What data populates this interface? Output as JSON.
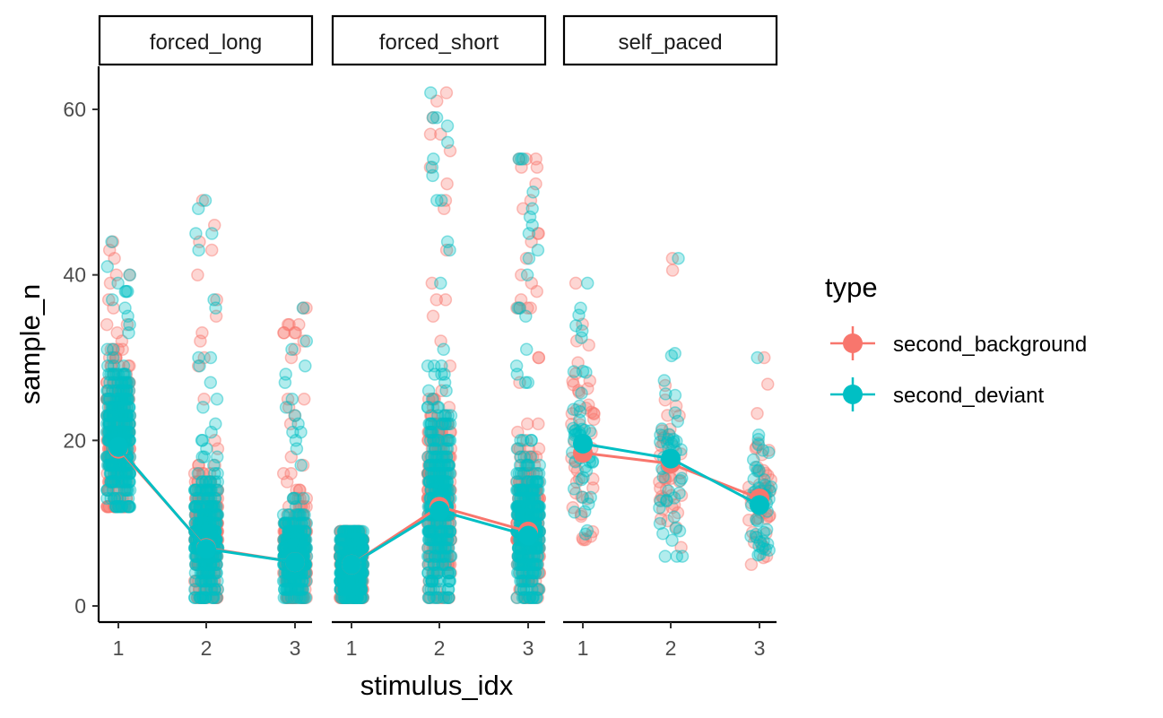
{
  "chart_data": {
    "type": "scatter",
    "xlabel": "stimulus_idx",
    "ylabel": "sample_n",
    "ylim": [
      -2,
      65
    ],
    "y_ticks": [
      "0",
      "20",
      "40",
      "60"
    ],
    "x_categories": [
      "1",
      "2",
      "3"
    ],
    "grid": false,
    "legend": {
      "title": "type",
      "position": "right",
      "entries": [
        "second_background",
        "second_deviant"
      ]
    },
    "colors": {
      "second_background": "#F8766D",
      "second_deviant": "#00BFC4"
    },
    "facets": [
      {
        "label": "forced_long",
        "means": {
          "second_background": [
            19.0,
            7.0,
            5.3
          ],
          "second_deviant": [
            19.2,
            6.9,
            5.3
          ]
        },
        "point_clouds": [
          {
            "x": "1",
            "min": 12,
            "max": 44,
            "center": 20
          },
          {
            "x": "2",
            "min": 1,
            "max": 49,
            "center": 8
          },
          {
            "x": "3",
            "min": 1,
            "max": 36,
            "center": 6
          }
        ]
      },
      {
        "label": "forced_short",
        "means": {
          "second_background": [
            5.0,
            12.0,
            9.0
          ],
          "second_deviant": [
            5.0,
            11.5,
            8.5
          ]
        },
        "point_clouds": [
          {
            "x": "1",
            "min": 1,
            "max": 9,
            "center": 5
          },
          {
            "x": "2",
            "min": 1,
            "max": 62,
            "center": 12
          },
          {
            "x": "3",
            "min": 1,
            "max": 54,
            "center": 9
          }
        ]
      },
      {
        "label": "self_paced",
        "means": {
          "second_background": [
            18.5,
            17.2,
            13.0
          ],
          "second_deviant": [
            19.6,
            17.8,
            12.2
          ]
        },
        "point_clouds": [
          {
            "x": "1",
            "min": 8,
            "max": 39,
            "center": 19
          },
          {
            "x": "2",
            "min": 6,
            "max": 42,
            "center": 17
          },
          {
            "x": "3",
            "min": 5,
            "max": 30,
            "center": 12
          }
        ]
      }
    ]
  }
}
